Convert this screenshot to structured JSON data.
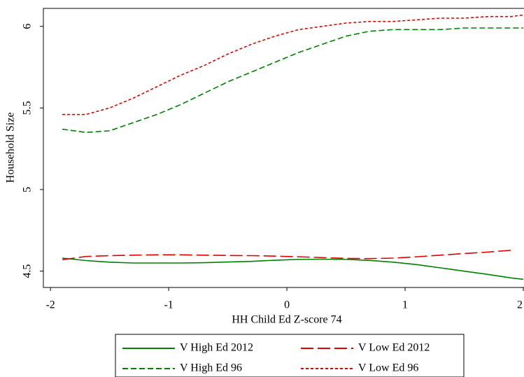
{
  "chart_data": {
    "type": "line",
    "xlabel": "HH Child Ed Z-score 74",
    "ylabel": "Household Size",
    "x": [
      -1.9,
      -1.7,
      -1.5,
      -1.3,
      -1.1,
      -0.9,
      -0.7,
      -0.5,
      -0.3,
      -0.1,
      0.1,
      0.3,
      0.5,
      0.7,
      0.9,
      1.1,
      1.3,
      1.5,
      1.7,
      1.9,
      2.0
    ],
    "series": [
      {
        "name": "V High Ed 2012",
        "color": "#008000",
        "dash": "solid",
        "values": [
          4.58,
          4.565,
          4.555,
          4.55,
          4.55,
          4.55,
          4.552,
          4.556,
          4.56,
          4.567,
          4.572,
          4.573,
          4.572,
          4.566,
          4.555,
          4.54,
          4.52,
          4.5,
          4.48,
          4.458,
          4.45
        ]
      },
      {
        "name": "V Low Ed 2012",
        "color": "#e00000",
        "dash": "longdash",
        "values": [
          4.57,
          4.59,
          4.595,
          4.598,
          4.6,
          4.6,
          4.598,
          4.596,
          4.595,
          4.592,
          4.588,
          4.583,
          4.578,
          4.577,
          4.58,
          4.588,
          4.598,
          4.608,
          4.617,
          4.628,
          null
        ]
      },
      {
        "name": "V High Ed 96",
        "color": "#008000",
        "dash": "dash",
        "values": [
          5.37,
          5.35,
          5.36,
          5.41,
          5.46,
          5.52,
          5.59,
          5.66,
          5.72,
          5.78,
          5.84,
          5.89,
          5.94,
          5.97,
          5.98,
          5.98,
          5.98,
          5.99,
          5.99,
          5.99,
          5.99
        ]
      },
      {
        "name": "V Low Ed 96",
        "color": "#e00000",
        "dash": "shortdash",
        "values": [
          5.46,
          5.46,
          5.5,
          5.56,
          5.63,
          5.7,
          5.76,
          5.83,
          5.89,
          5.94,
          5.98,
          6.0,
          6.02,
          6.03,
          6.03,
          6.04,
          6.05,
          6.05,
          6.06,
          6.06,
          6.07
        ]
      }
    ],
    "xlim": [
      -2.06,
      2.0
    ],
    "ylim": [
      4.4,
      6.11
    ],
    "xticks": [
      -2,
      -1,
      0,
      1,
      2
    ],
    "yticks": [
      4.5,
      5,
      5.5,
      6
    ],
    "grid": false,
    "legend_position": "bottom"
  }
}
